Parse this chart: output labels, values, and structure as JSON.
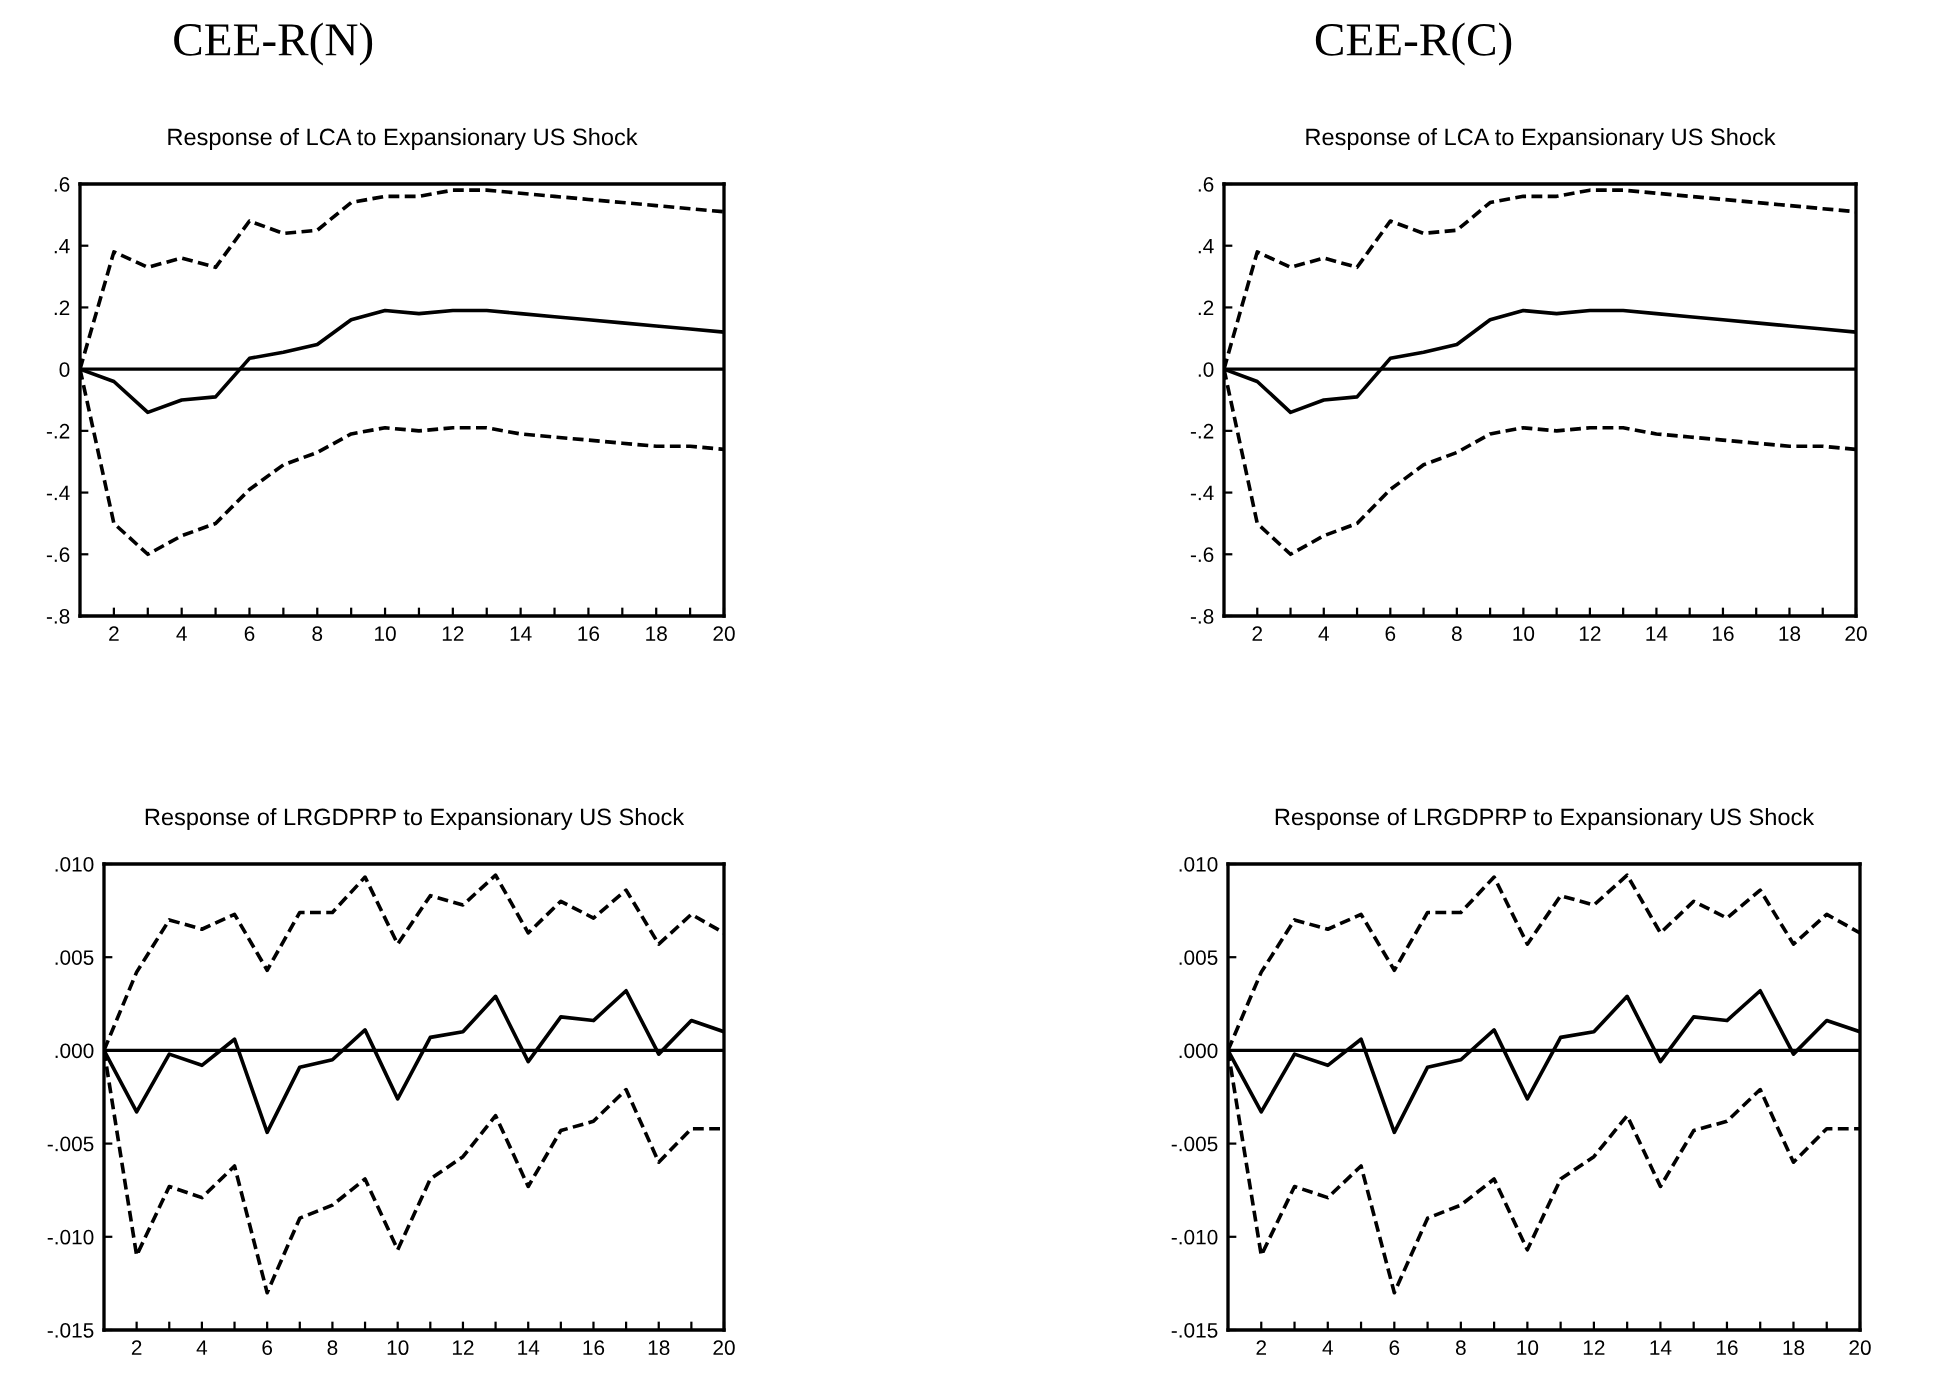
{
  "chart_data": [
    {
      "type": "line",
      "annotations": [
        "CEE-R(N)"
      ],
      "title": "Response of LCA to Expansionary US Shock",
      "x": [
        1,
        2,
        3,
        4,
        5,
        6,
        7,
        8,
        9,
        10,
        11,
        12,
        13,
        14,
        15,
        16,
        17,
        18,
        19,
        20
      ],
      "series": [
        {
          "color": "#000000",
          "line_style": "solid",
          "values": [
            0,
            -0.04,
            -0.14,
            -0.1,
            -0.09,
            0.035,
            0.055,
            0.08,
            0.16,
            0.19,
            0.18,
            0.19,
            0.19,
            0.18,
            0.17,
            0.16,
            0.15,
            0.14,
            0.13,
            0.12
          ]
        },
        {
          "color": "#000000",
          "line_style": "dashed",
          "values": [
            0,
            0.38,
            0.33,
            0.36,
            0.33,
            0.48,
            0.44,
            0.45,
            0.54,
            0.56,
            0.56,
            0.58,
            0.58,
            0.57,
            0.56,
            0.55,
            0.54,
            0.53,
            0.52,
            0.51
          ]
        },
        {
          "color": "#000000",
          "line_style": "dashed",
          "values": [
            0,
            -0.5,
            -0.6,
            -0.54,
            -0.5,
            -0.39,
            -0.31,
            -0.27,
            -0.21,
            -0.19,
            -0.2,
            -0.19,
            -0.19,
            -0.21,
            -0.22,
            -0.23,
            -0.24,
            -0.25,
            -0.25,
            -0.26
          ]
        }
      ],
      "xlim": [
        1,
        20
      ],
      "ylim": [
        -0.8,
        0.6
      ],
      "xticks": [
        {
          "value": 2,
          "label": "2"
        },
        {
          "value": 3,
          "label": null
        },
        {
          "value": 4,
          "label": "4"
        },
        {
          "value": 5,
          "label": null
        },
        {
          "value": 6,
          "label": "6"
        },
        {
          "value": 7,
          "label": null
        },
        {
          "value": 8,
          "label": "8"
        },
        {
          "value": 9,
          "label": null
        },
        {
          "value": 10,
          "label": "10"
        },
        {
          "value": 11,
          "label": null
        },
        {
          "value": 12,
          "label": "12"
        },
        {
          "value": 13,
          "label": null
        },
        {
          "value": 14,
          "label": "14"
        },
        {
          "value": 15,
          "label": null
        },
        {
          "value": 16,
          "label": "16"
        },
        {
          "value": 17,
          "label": null
        },
        {
          "value": 18,
          "label": "18"
        },
        {
          "value": 19,
          "label": null
        },
        {
          "value": 20,
          "label": "20"
        }
      ],
      "yticks": [
        {
          "value": 0.6,
          "label": ".6"
        },
        {
          "value": 0.4,
          "label": ".4"
        },
        {
          "value": 0.2,
          "label": ".2"
        },
        {
          "value": 0,
          "label": "0"
        },
        {
          "value": -0.2,
          "label": "-.2"
        },
        {
          "value": -0.4,
          "label": "-.4"
        },
        {
          "value": -0.6,
          "label": "-.6"
        },
        {
          "value": -0.8,
          "label": "-.8"
        }
      ],
      "ref_lines": [
        {
          "axis": "y",
          "value": 0,
          "color": "#000000"
        }
      ],
      "grid": false,
      "legend": false
    },
    {
      "type": "line",
      "annotations": [
        "CEE-R(C)"
      ],
      "title": "Response of LCA to Expansionary US Shock",
      "x": [
        1,
        2,
        3,
        4,
        5,
        6,
        7,
        8,
        9,
        10,
        11,
        12,
        13,
        14,
        15,
        16,
        17,
        18,
        19,
        20
      ],
      "series": [
        {
          "color": "#000000",
          "line_style": "solid",
          "values": [
            0,
            -0.04,
            -0.14,
            -0.1,
            -0.09,
            0.035,
            0.055,
            0.08,
            0.16,
            0.19,
            0.18,
            0.19,
            0.19,
            0.18,
            0.17,
            0.16,
            0.15,
            0.14,
            0.13,
            0.12
          ]
        },
        {
          "color": "#000000",
          "line_style": "dashed",
          "values": [
            0,
            0.38,
            0.33,
            0.36,
            0.33,
            0.48,
            0.44,
            0.45,
            0.54,
            0.56,
            0.56,
            0.58,
            0.58,
            0.57,
            0.56,
            0.55,
            0.54,
            0.53,
            0.52,
            0.51
          ]
        },
        {
          "color": "#000000",
          "line_style": "dashed",
          "values": [
            0,
            -0.5,
            -0.6,
            -0.54,
            -0.5,
            -0.39,
            -0.31,
            -0.27,
            -0.21,
            -0.19,
            -0.2,
            -0.19,
            -0.19,
            -0.21,
            -0.22,
            -0.23,
            -0.24,
            -0.25,
            -0.25,
            -0.26
          ]
        }
      ],
      "xlim": [
        1,
        20
      ],
      "ylim": [
        -0.8,
        0.6
      ],
      "xticks": [
        {
          "value": 2,
          "label": "2"
        },
        {
          "value": 3,
          "label": null
        },
        {
          "value": 4,
          "label": "4"
        },
        {
          "value": 5,
          "label": null
        },
        {
          "value": 6,
          "label": "6"
        },
        {
          "value": 7,
          "label": null
        },
        {
          "value": 8,
          "label": "8"
        },
        {
          "value": 9,
          "label": null
        },
        {
          "value": 10,
          "label": "10"
        },
        {
          "value": 11,
          "label": null
        },
        {
          "value": 12,
          "label": "12"
        },
        {
          "value": 13,
          "label": null
        },
        {
          "value": 14,
          "label": "14"
        },
        {
          "value": 15,
          "label": null
        },
        {
          "value": 16,
          "label": "16"
        },
        {
          "value": 17,
          "label": null
        },
        {
          "value": 18,
          "label": "18"
        },
        {
          "value": 19,
          "label": null
        },
        {
          "value": 20,
          "label": "20"
        }
      ],
      "yticks": [
        {
          "value": 0.6,
          "label": ".6"
        },
        {
          "value": 0.4,
          "label": ".4"
        },
        {
          "value": 0.2,
          "label": ".2"
        },
        {
          "value": 0,
          "label": ".0"
        },
        {
          "value": -0.2,
          "label": "-.2"
        },
        {
          "value": -0.4,
          "label": "-.4"
        },
        {
          "value": -0.6,
          "label": "-.6"
        },
        {
          "value": -0.8,
          "label": "-.8"
        }
      ],
      "ref_lines": [
        {
          "axis": "y",
          "value": 0,
          "color": "#000000"
        }
      ],
      "grid": false,
      "legend": false
    },
    {
      "type": "line",
      "title": "Response of LRGDPRP to Expansionary US Shock",
      "x": [
        1,
        2,
        3,
        4,
        5,
        6,
        7,
        8,
        9,
        10,
        11,
        12,
        13,
        14,
        15,
        16,
        17,
        18,
        19,
        20
      ],
      "series": [
        {
          "color": "#000000",
          "line_style": "solid",
          "values": [
            0,
            -0.0033,
            -0.0002,
            -0.0008,
            0.0006,
            -0.0044,
            -0.0009,
            -0.0005,
            0.0011,
            -0.0026,
            0.0007,
            0.001,
            0.0029,
            -0.0006,
            0.0018,
            0.0016,
            0.0032,
            -0.0002,
            0.0016,
            0.001
          ]
        },
        {
          "color": "#000000",
          "line_style": "dashed",
          "values": [
            0,
            0.0042,
            0.007,
            0.0065,
            0.0073,
            0.0043,
            0.0074,
            0.0074,
            0.0093,
            0.0057,
            0.0083,
            0.0078,
            0.0094,
            0.0063,
            0.008,
            0.0071,
            0.0086,
            0.0057,
            0.0073,
            0.0063
          ]
        },
        {
          "color": "#000000",
          "line_style": "dashed",
          "values": [
            0,
            -0.011,
            -0.0073,
            -0.0079,
            -0.0062,
            -0.013,
            -0.009,
            -0.0083,
            -0.0069,
            -0.0107,
            -0.0069,
            -0.0057,
            -0.0035,
            -0.0073,
            -0.0043,
            -0.0038,
            -0.0021,
            -0.006,
            -0.0042,
            -0.0042
          ]
        }
      ],
      "xlim": [
        1,
        20
      ],
      "ylim": [
        -0.015,
        0.01
      ],
      "xticks": [
        {
          "value": 2,
          "label": "2"
        },
        {
          "value": 3,
          "label": null
        },
        {
          "value": 4,
          "label": "4"
        },
        {
          "value": 5,
          "label": null
        },
        {
          "value": 6,
          "label": "6"
        },
        {
          "value": 7,
          "label": null
        },
        {
          "value": 8,
          "label": "8"
        },
        {
          "value": 9,
          "label": null
        },
        {
          "value": 10,
          "label": "10"
        },
        {
          "value": 11,
          "label": null
        },
        {
          "value": 12,
          "label": "12"
        },
        {
          "value": 13,
          "label": null
        },
        {
          "value": 14,
          "label": "14"
        },
        {
          "value": 15,
          "label": null
        },
        {
          "value": 16,
          "label": "16"
        },
        {
          "value": 17,
          "label": null
        },
        {
          "value": 18,
          "label": "18"
        },
        {
          "value": 19,
          "label": null
        },
        {
          "value": 20,
          "label": "20"
        }
      ],
      "yticks": [
        {
          "value": 0.01,
          "label": ".010"
        },
        {
          "value": 0.005,
          "label": ".005"
        },
        {
          "value": 0,
          "label": ".000"
        },
        {
          "value": -0.005,
          "label": "-.005"
        },
        {
          "value": -0.01,
          "label": "-.010"
        },
        {
          "value": -0.015,
          "label": "-.015"
        }
      ],
      "ref_lines": [
        {
          "axis": "y",
          "value": 0,
          "color": "#000000"
        }
      ],
      "grid": false,
      "legend": false
    },
    {
      "type": "line",
      "title": "Response of LRGDPRP to Expansionary US Shock",
      "x": [
        1,
        2,
        3,
        4,
        5,
        6,
        7,
        8,
        9,
        10,
        11,
        12,
        13,
        14,
        15,
        16,
        17,
        18,
        19,
        20
      ],
      "series": [
        {
          "color": "#000000",
          "line_style": "solid",
          "values": [
            0,
            -0.0033,
            -0.0002,
            -0.0008,
            0.0006,
            -0.0044,
            -0.0009,
            -0.0005,
            0.0011,
            -0.0026,
            0.0007,
            0.001,
            0.0029,
            -0.0006,
            0.0018,
            0.0016,
            0.0032,
            -0.0002,
            0.0016,
            0.001
          ]
        },
        {
          "color": "#000000",
          "line_style": "dashed",
          "values": [
            0,
            0.0042,
            0.007,
            0.0065,
            0.0073,
            0.0043,
            0.0074,
            0.0074,
            0.0093,
            0.0057,
            0.0083,
            0.0078,
            0.0094,
            0.0063,
            0.008,
            0.0071,
            0.0086,
            0.0057,
            0.0073,
            0.0063
          ]
        },
        {
          "color": "#000000",
          "line_style": "dashed",
          "values": [
            0,
            -0.011,
            -0.0073,
            -0.0079,
            -0.0062,
            -0.013,
            -0.009,
            -0.0083,
            -0.0069,
            -0.0107,
            -0.0069,
            -0.0057,
            -0.0035,
            -0.0073,
            -0.0043,
            -0.0038,
            -0.0021,
            -0.006,
            -0.0042,
            -0.0042
          ]
        }
      ],
      "xlim": [
        1,
        20
      ],
      "ylim": [
        -0.015,
        0.01
      ],
      "xticks": [
        {
          "value": 2,
          "label": "2"
        },
        {
          "value": 3,
          "label": null
        },
        {
          "value": 4,
          "label": "4"
        },
        {
          "value": 5,
          "label": null
        },
        {
          "value": 6,
          "label": "6"
        },
        {
          "value": 7,
          "label": null
        },
        {
          "value": 8,
          "label": "8"
        },
        {
          "value": 9,
          "label": null
        },
        {
          "value": 10,
          "label": "10"
        },
        {
          "value": 11,
          "label": null
        },
        {
          "value": 12,
          "label": "12"
        },
        {
          "value": 13,
          "label": null
        },
        {
          "value": 14,
          "label": "14"
        },
        {
          "value": 15,
          "label": null
        },
        {
          "value": 16,
          "label": "16"
        },
        {
          "value": 17,
          "label": null
        },
        {
          "value": 18,
          "label": "18"
        },
        {
          "value": 19,
          "label": null
        },
        {
          "value": 20,
          "label": "20"
        }
      ],
      "yticks": [
        {
          "value": 0.01,
          "label": ".010"
        },
        {
          "value": 0.005,
          "label": ".005"
        },
        {
          "value": 0,
          "label": ".000"
        },
        {
          "value": -0.005,
          "label": "-.005"
        },
        {
          "value": -0.01,
          "label": "-.010"
        },
        {
          "value": -0.015,
          "label": "-.015"
        }
      ],
      "ref_lines": [
        {
          "axis": "y",
          "value": 0,
          "color": "#000000"
        }
      ],
      "grid": false,
      "legend": false
    }
  ]
}
